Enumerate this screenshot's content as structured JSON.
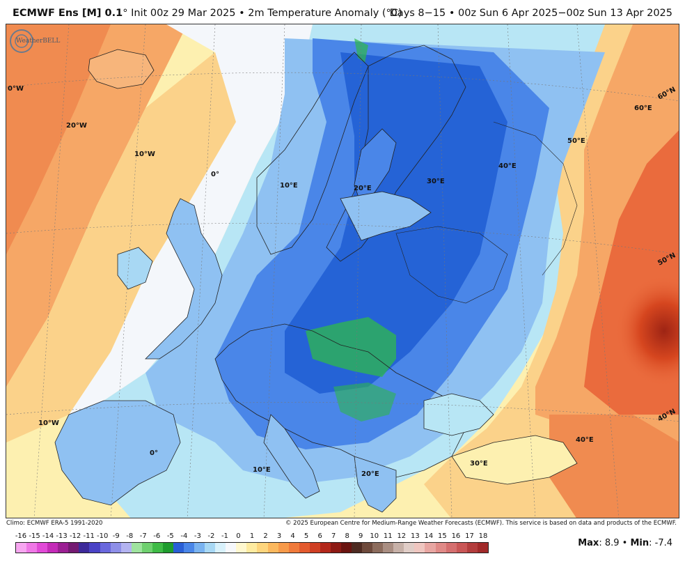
{
  "header": {
    "model": "ECMWF Ens [M] 0.1",
    "degree_sign": "°",
    "init_text": " Init 00z 29 Mar 2025 • 2m Temperature Anomaly (°C)",
    "period_text": "Days 8−15 • 00z Sun 6 Apr 2025−00z Sun 13 Apr 2025"
  },
  "map": {
    "labels": {
      "w0": "0°W",
      "w20": "20°W",
      "w10": "10°W",
      "zero_top": "0°",
      "e10": "10°E",
      "e20": "20°E",
      "e30": "30°E",
      "e40": "40°E",
      "e50": "50°E",
      "e60": "60°E",
      "n60": "60°N",
      "n50": "50°N",
      "n40": "40°N",
      "w10_south": "10°W",
      "zero_south": "0°",
      "e10_south": "10°E",
      "e20_south": "20°E",
      "e30_south": "30°E",
      "e40_south": "40°E"
    },
    "colors": {
      "strong_cold": "#2563d6",
      "cold": "#4a86e8",
      "cool": "#8fc1f2",
      "slight_cool": "#b8e6f5",
      "neutral": "#f4f7fb",
      "slight_warm": "#fdf0b0",
      "warm": "#fbd28a",
      "warmer": "#f6a766",
      "hot": "#ea6b3d",
      "very_hot": "#c7361d",
      "green_anomaly": "#2fb84c"
    }
  },
  "credits": {
    "climo": "Climo: ECMWF ERA-5 1991-2020",
    "copyright": "© 2025 European Centre for Medium-Range Weather Forecasts (ECMWF). This service is based on data and products of the ECMWF."
  },
  "logo": {
    "text": "WeatherBELL"
  },
  "legend": {
    "ticks": [
      "-16",
      "-15",
      "-14",
      "-13",
      "-12",
      "-11",
      "-10",
      "-9",
      "-8",
      "-7",
      "-6",
      "-5",
      "-4",
      "-3",
      "-2",
      "-1",
      "0",
      "1",
      "2",
      "3",
      "4",
      "5",
      "6",
      "7",
      "8",
      "9",
      "10",
      "11",
      "12",
      "13",
      "14",
      "15",
      "16",
      "17",
      "18"
    ],
    "colors": [
      "#f7a6f0",
      "#ef78e6",
      "#e14ad7",
      "#c42bb8",
      "#9b1f93",
      "#741a72",
      "#3d2a9a",
      "#4a43c6",
      "#6a68dd",
      "#8e8fe8",
      "#b3b3f0",
      "#9fe39f",
      "#6fd06f",
      "#3fbb46",
      "#1f9c2e",
      "#2a5fd6",
      "#4a86e8",
      "#7ab3f0",
      "#a8d8f4",
      "#d8f1fb",
      "#f6f8fb",
      "#fff8cf",
      "#feeba0",
      "#fdd57d",
      "#fbb85e",
      "#f79a4a",
      "#f07a3b",
      "#e35a2e",
      "#cf3f23",
      "#b3271a",
      "#8d1a14",
      "#6a1410",
      "#4e2b22",
      "#6e4a3c",
      "#8c6c5d",
      "#a98e82",
      "#c7b1a8",
      "#e0cdc7",
      "#efc6c0",
      "#e8a6a2",
      "#e08a87",
      "#d56f6f",
      "#c95656",
      "#b33d3d",
      "#a12a2a"
    ],
    "max_label": "Max",
    "max_value": ": 8.9",
    "sep": " • ",
    "min_label": "Min",
    "min_value": ": -7.4"
  }
}
